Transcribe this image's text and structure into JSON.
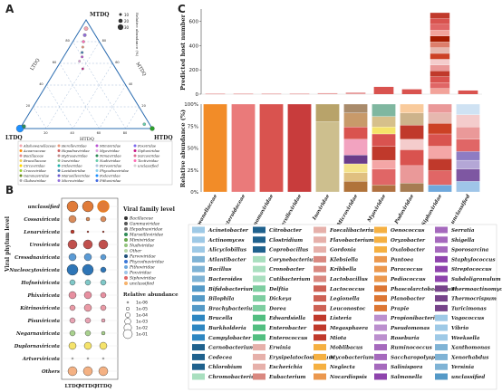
{
  "panel_labels": {
    "a": "A",
    "b": "B",
    "c": "C"
  },
  "colors": {
    "tern_blue": "#1f77b4",
    "tern_orange": "#ff7f0e",
    "tern_green": "#2ca02c",
    "bubble_sizes": [
      "#333"
    ]
  },
  "panel_a": {
    "apex_top": "MTDQ",
    "apex_left": "LTDQ",
    "apex_right": "HTDQ",
    "axis_left": "LTDQ",
    "axis_right": "MTDQ",
    "axis_bottom": "HTDQ",
    "ticks": [
      "20",
      "40",
      "60",
      "80"
    ],
    "size_legend_title": "Relative abundance (%)",
    "size_legend": [
      "10",
      "20",
      "30"
    ],
    "families": [
      {
        "name": "Alishewanellaceae",
        "color": "#f4a6b0"
      },
      {
        "name": "Azoarcaceae",
        "color": "#ff8c00"
      },
      {
        "name": "Bacillaceae",
        "color": "#e38b8b"
      },
      {
        "name": "Brucellaceae",
        "color": "#f0d050"
      },
      {
        "name": "Circoviridae",
        "color": "#ffd700"
      },
      {
        "name": "Crocoviridae",
        "color": "#9acd32"
      },
      {
        "name": "Gammaviridae",
        "color": "#6b8e23"
      },
      {
        "name": "Globoviridae",
        "color": "#a9a9a9"
      },
      {
        "name": "Herelleviridae",
        "color": "#e9967a"
      },
      {
        "name": "Hepadnaviridae",
        "color": "#cd5c5c"
      },
      {
        "name": "Hytrosaviridae",
        "color": "#bc8f8f"
      },
      {
        "name": "Inoviridae",
        "color": "#8fbc8f"
      },
      {
        "name": "Iridoviridae",
        "color": "#20b2aa"
      },
      {
        "name": "Lavidaviridae",
        "color": "#4682b4"
      },
      {
        "name": "Marseilleviridae",
        "color": "#6a5acd"
      },
      {
        "name": "Microviridae",
        "color": "#9370db"
      },
      {
        "name": "Mimiviridae",
        "color": "#ba55d3"
      },
      {
        "name": "Myoviridae",
        "color": "#dda0dd"
      },
      {
        "name": "Nimaviridae",
        "color": "#2e8b57"
      },
      {
        "name": "Nudiviridae",
        "color": "#66cdaa"
      },
      {
        "name": "Parvoviridae",
        "color": "#b0c4de"
      },
      {
        "name": "Phycodnaviridae",
        "color": "#87ceeb"
      },
      {
        "name": "Podoviridae",
        "color": "#1e90ff"
      },
      {
        "name": "Pithoviridae",
        "color": "#4169e1"
      },
      {
        "name": "Poxviridae",
        "color": "#7b68ee"
      },
      {
        "name": "Siphoviridae",
        "color": "#c71585"
      },
      {
        "name": "Sarcoviridae",
        "color": "#db7093"
      },
      {
        "name": "Tectiviridae",
        "color": "#ff69b4"
      },
      {
        "name": "unclassified",
        "color": "#d3d3d3"
      }
    ]
  },
  "panel_b": {
    "ylabel": "Viral phylum level",
    "xlabels": [
      "LTDQ",
      "MTDQ",
      "HTDQ"
    ],
    "rows": [
      {
        "label": "unclassified",
        "color": "#e07b39",
        "sizes": [
          6,
          6,
          6
        ],
        "ring": [
          false,
          false,
          true
        ]
      },
      {
        "label": "Cossaviricota",
        "color": "#d98b5a",
        "sizes": [
          4,
          2,
          3
        ],
        "ring": [
          false,
          false,
          false
        ]
      },
      {
        "label": "Lenarviricota",
        "color": "#c0392b",
        "sizes": [
          2,
          1,
          1
        ],
        "ring": [
          false,
          false,
          false
        ]
      },
      {
        "label": "Uroviricota",
        "color": "#c0504d",
        "sizes": [
          5,
          5,
          5
        ],
        "ring": [
          false,
          false,
          false
        ]
      },
      {
        "label": "Cressdnaviricota",
        "color": "#5b9bd5",
        "sizes": [
          4,
          4,
          3
        ],
        "ring": [
          false,
          false,
          false
        ]
      },
      {
        "label": "Nucleocytoviricota",
        "color": "#2e75b6",
        "sizes": [
          6,
          6,
          3
        ],
        "ring": [
          false,
          false,
          false
        ]
      },
      {
        "label": "Hofneiviricota",
        "color": "#7fc8c8",
        "sizes": [
          3,
          3,
          3
        ],
        "ring": [
          false,
          false,
          false
        ]
      },
      {
        "label": "Phixviricota",
        "color": "#e78fa0",
        "sizes": [
          4,
          4,
          3
        ],
        "ring": [
          false,
          false,
          false
        ]
      },
      {
        "label": "Kitrinoviricota",
        "color": "#ea9aa6",
        "sizes": [
          3,
          4,
          3
        ],
        "ring": [
          false,
          false,
          false
        ]
      },
      {
        "label": "Pisuviricota",
        "color": "#e8a3b3",
        "sizes": [
          3,
          3,
          2
        ],
        "ring": [
          false,
          false,
          false
        ]
      },
      {
        "label": "Negarnaviricota",
        "color": "#a9d18e",
        "sizes": [
          3,
          3,
          2
        ],
        "ring": [
          false,
          false,
          false
        ]
      },
      {
        "label": "Duplornaviricota",
        "color": "#f5e36a",
        "sizes": [
          4,
          4,
          4
        ],
        "ring": [
          false,
          false,
          false
        ]
      },
      {
        "label": "Artverviricota",
        "color": "#f3f3f3",
        "sizes": [
          1,
          1,
          1
        ],
        "ring": [
          false,
          false,
          false
        ]
      },
      {
        "label": "Others",
        "color": "#f4b183",
        "sizes": [
          5,
          5,
          5
        ],
        "ring": [
          false,
          false,
          false
        ]
      }
    ],
    "legend_title": "Viral family level",
    "legend_items": [
      {
        "name": "Bacillaceae",
        "color": "#333333"
      },
      {
        "name": "Gammaviridae",
        "color": "#555555"
      },
      {
        "name": "Hepadnaviridae",
        "color": "#777777"
      },
      {
        "name": "Marseilleviridae",
        "color": "#2e8b57"
      },
      {
        "name": "Mimiviridae",
        "color": "#6aa84f"
      },
      {
        "name": "Nudiviridae",
        "color": "#93c47d"
      },
      {
        "name": "Other",
        "color": "#b6d7a8"
      },
      {
        "name": "Parvoviridae",
        "color": "#1f4e79"
      },
      {
        "name": "Phycodnaviridae",
        "color": "#3c78d8"
      },
      {
        "name": "Pithoviridae",
        "color": "#6fa8dc"
      },
      {
        "name": "Poxviridae",
        "color": "#9fc5e8"
      },
      {
        "name": "Siphoviridae",
        "color": "#e06666"
      },
      {
        "name": "unclassified",
        "color": "#f6b26b"
      }
    ],
    "size_title": "Relative abundance",
    "size_items": [
      "1e-06",
      "1e-05",
      "1e-04",
      "1e-03",
      "1e-02",
      "1e-01"
    ]
  },
  "chart_data": [
    {
      "type": "bar",
      "title": "",
      "ylabel": "Predicted host number",
      "categories": [
        "Alishewanellaceae",
        "Bacteroidaceae",
        "Genomoviridae",
        "Herelleviridae",
        "Inoviridae",
        "Microviridae",
        "Myoviridae",
        "Podoviridae",
        "Siphoviridae",
        "unclassified"
      ],
      "ylim": [
        0,
        700
      ],
      "yticks": [
        0,
        200,
        400,
        600
      ],
      "values": [
        5,
        5,
        5,
        5,
        8,
        14,
        60,
        40,
        670,
        30
      ]
    },
    {
      "type": "bar",
      "stacked": true,
      "ylabel": "Relative abundance (%)",
      "categories": [
        "Alishewanellaceae",
        "Bacteroidaceae",
        "Genomoviridae",
        "Herelleviridae",
        "Inoviridae",
        "Microviridae",
        "Myoviridae",
        "Podoviridae",
        "Siphoviridae",
        "unclassified"
      ],
      "ylim": [
        0,
        100
      ],
      "yticks": [
        "0%",
        "25%",
        "50%",
        "75%",
        "100%"
      ]
    }
  ],
  "bacteria_legend": [
    "Acinetobacter",
    "Actinomyces",
    "Alicyclobillus",
    "Atlantibacter",
    "Bacillus",
    "Bacteroides",
    "Bifidobacterium",
    "Bilophila",
    "Brachybacterium",
    "Brucella",
    "Burkholderia",
    "Campylobacter",
    "Carnobacterium",
    "Cedecea",
    "Chlorobium",
    "Chromobacterium",
    "Citrobacter",
    "Clostridium",
    "Coprobacillus",
    "Corynebacterium",
    "Cronobacter",
    "Cutibacterium",
    "Delftia",
    "Dickeya",
    "Dorea",
    "Edwardsiella",
    "Enterobacter",
    "Enterococcus",
    "Erwinia",
    "Erysipelatoclostridium",
    "Escherichia",
    "Eubacterium",
    "Faecalibacterium",
    "Flavobacterium",
    "Gordonia",
    "Klebsiella",
    "Kribbella",
    "Lactobacillus",
    "Lactococcus",
    "Legionella",
    "Leuconostoc",
    "Listeria",
    "Megasphaera",
    "Miota",
    "Moblibacus",
    "Mycobacterium",
    "Neglecta",
    "Nocardiopsis",
    "Oenococcus",
    "Oryzobacter",
    "Oxalobacter",
    "Pantoea",
    "Paracoccus",
    "Pediococcus",
    "Phascolarctobacterium",
    "Planobacter",
    "Prapie",
    "Propionibacterium",
    "Pseudomonas",
    "Roseburia",
    "Ruminococcus",
    "Saccharopolyspora",
    "Salinispora",
    "Salmonella",
    "Serratia",
    "Shigella",
    "Sporosarcina",
    "Staphylococcus",
    "Streptococcus",
    "Subdoligranulum",
    "Thermoactinomyces",
    "Thermocrispum",
    "Turicimonas",
    "Vagococcus",
    "Vibrio",
    "Weeksella",
    "Xanthomonas",
    "Xenorhabdus",
    "Yersinia",
    "unclassified"
  ]
}
